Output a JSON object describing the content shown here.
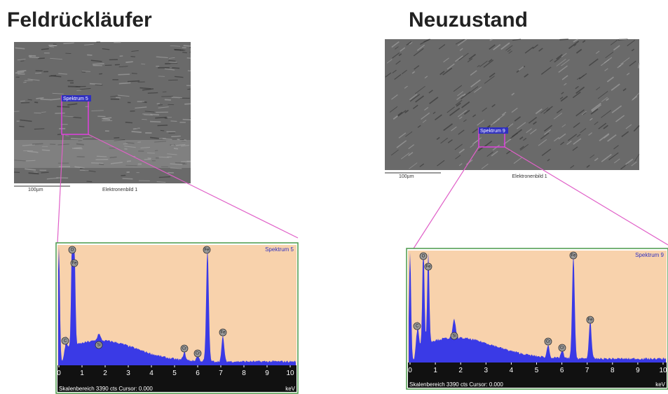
{
  "left": {
    "title": "Feldrückläufer",
    "image": {
      "region_label": "Spektrum 5",
      "scale_label": "100µm",
      "caption": "Elektronenbild 1"
    },
    "spectrum": {
      "label": "Spektrum 5",
      "peak_labels": [
        "C",
        "O",
        "Fe",
        "Si",
        "Cr",
        "Cr",
        "Fe",
        "Fe"
      ],
      "xticks": [
        0,
        1,
        2,
        3,
        4,
        5,
        6,
        7,
        8,
        9,
        10
      ],
      "unit": "keV",
      "status": "Skalenbereich 3390 cts Cursor: 0.000"
    }
  },
  "right": {
    "title": "Neuzustand",
    "image": {
      "region_label": "Spektrum 9",
      "scale_label": "100µm",
      "caption": "Elektronenbild 1"
    },
    "spectrum": {
      "label": "Spektrum 9",
      "peak_labels": [
        "C",
        "O",
        "Fe",
        "Si",
        "Cr",
        "Cr",
        "Fe",
        "Fe"
      ],
      "xticks": [
        0,
        1,
        2,
        3,
        4,
        5,
        6,
        7,
        8,
        9,
        10
      ],
      "unit": "keV",
      "status": "Skalenbereich 3390 cts Cursor: 0.000"
    }
  }
}
